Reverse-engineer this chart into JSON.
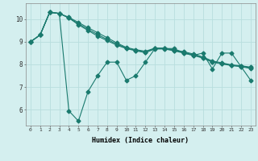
{
  "xlabel": "Humidex (Indice chaleur)",
  "bg_color": "#d4efef",
  "line_color": "#1a7a6e",
  "grid_color": "#b8dede",
  "xlim": [
    -0.5,
    23.5
  ],
  "ylim": [
    5.3,
    10.7
  ],
  "yticks": [
    6,
    7,
    8,
    9,
    10
  ],
  "xticks": [
    0,
    1,
    2,
    3,
    4,
    5,
    6,
    7,
    8,
    9,
    10,
    11,
    12,
    13,
    14,
    15,
    16,
    17,
    18,
    19,
    20,
    21,
    22,
    23
  ],
  "series": [
    [
      9.0,
      9.3,
      10.3,
      10.25,
      5.95,
      5.5,
      6.8,
      7.5,
      8.1,
      8.1,
      7.3,
      7.5,
      8.1,
      8.7,
      8.7,
      8.7,
      8.5,
      8.4,
      8.5,
      7.8,
      8.5,
      8.5,
      7.9,
      7.3
    ],
    [
      9.0,
      9.3,
      10.3,
      10.25,
      10.05,
      9.75,
      9.5,
      9.25,
      9.05,
      8.85,
      8.7,
      8.6,
      8.52,
      8.68,
      8.68,
      8.6,
      8.5,
      8.4,
      8.28,
      8.1,
      8.02,
      7.95,
      7.9,
      7.82
    ],
    [
      9.0,
      9.3,
      10.3,
      10.25,
      10.05,
      9.8,
      9.55,
      9.32,
      9.1,
      8.9,
      8.72,
      8.62,
      8.55,
      8.7,
      8.7,
      8.62,
      8.53,
      8.43,
      8.3,
      8.12,
      8.04,
      7.96,
      7.92,
      7.85
    ],
    [
      9.0,
      9.3,
      10.3,
      10.25,
      10.08,
      9.85,
      9.62,
      9.4,
      9.18,
      8.95,
      8.75,
      8.65,
      8.58,
      8.72,
      8.72,
      8.64,
      8.56,
      8.46,
      8.33,
      8.15,
      8.07,
      7.98,
      7.94,
      7.88
    ]
  ],
  "marker": "D",
  "marker_size": 2.5,
  "linewidth": 0.8
}
